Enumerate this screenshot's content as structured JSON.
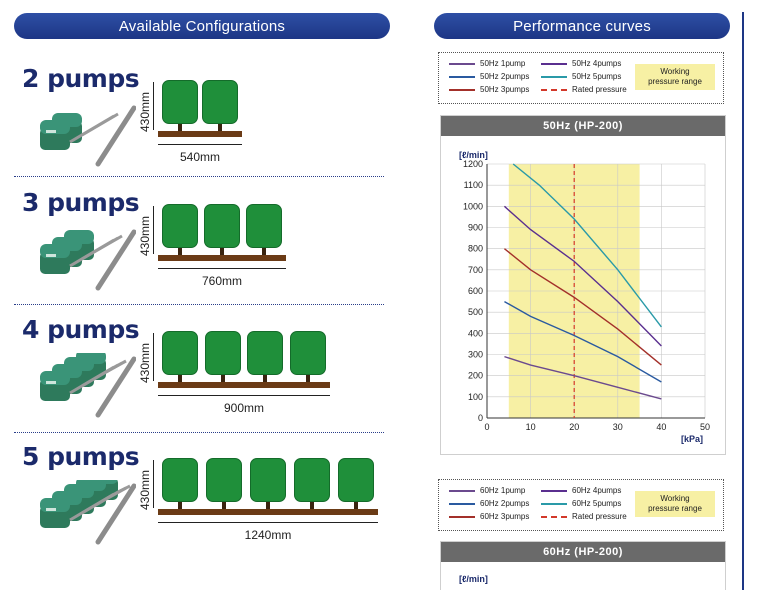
{
  "left_title": "Available Configurations",
  "right_title": "Performance curves",
  "configs": [
    {
      "count": "2 pumps",
      "height": "430mm",
      "width": "540mm",
      "trees": 2
    },
    {
      "count": "3 pumps",
      "height": "430mm",
      "width": "760mm",
      "trees": 3
    },
    {
      "count": "4 pumps",
      "height": "430mm",
      "width": "900mm",
      "trees": 4
    },
    {
      "count": "5 pumps",
      "height": "430mm",
      "width": "1240mm",
      "trees": 5
    }
  ],
  "legend50": {
    "items": [
      "50Hz 1pump",
      "50Hz 2pumps",
      "50Hz 3pumps",
      "50Hz 4pumps",
      "50Hz 5pumps",
      "Rated pressure"
    ],
    "working": "Working\npressure range"
  },
  "legend60": {
    "items": [
      "60Hz 1pump",
      "60Hz 2pumps",
      "60Hz 3pumps",
      "60Hz 4pumps",
      "60Hz 5pumps",
      "Rated pressure"
    ],
    "working": "Working\npressure range"
  },
  "colors": {
    "1pump": "#6b4a8e",
    "2pumps": "#2a5aa0",
    "3pumps": "#a3302a",
    "4pumps": "#5a2f8f",
    "5pumps": "#2a9aa8",
    "rated": "#d2382a",
    "working_band": "#f7f0a4"
  },
  "chart50_title": "50Hz (HP-200)",
  "chart60_title": "60Hz (HP-200)",
  "chart60_ylabel": "[ℓ/min]",
  "chart_data": {
    "type": "line",
    "title": "50Hz (HP-200)",
    "xlabel": "[kPa]",
    "ylabel": "[ℓ/min]",
    "xlim": [
      0,
      50
    ],
    "ylim": [
      0,
      1200
    ],
    "xticks": [
      0,
      10,
      20,
      30,
      40,
      50
    ],
    "yticks": [
      0,
      100,
      200,
      300,
      400,
      500,
      600,
      700,
      800,
      900,
      1000,
      1100,
      1200
    ],
    "grid": true,
    "working_range": [
      5,
      35
    ],
    "rated_pressure": 20,
    "series": [
      {
        "name": "50Hz 1pump",
        "x": [
          4,
          10,
          20,
          30,
          40
        ],
        "y": [
          290,
          250,
          200,
          145,
          90
        ]
      },
      {
        "name": "50Hz 2pumps",
        "x": [
          4,
          10,
          20,
          30,
          40
        ],
        "y": [
          550,
          480,
          390,
          290,
          170
        ]
      },
      {
        "name": "50Hz 3pumps",
        "x": [
          4,
          10,
          20,
          30,
          40
        ],
        "y": [
          800,
          700,
          570,
          420,
          250
        ]
      },
      {
        "name": "50Hz 4pumps",
        "x": [
          4,
          10,
          20,
          30,
          40
        ],
        "y": [
          1000,
          890,
          740,
          550,
          340
        ]
      },
      {
        "name": "50Hz 5pumps",
        "x": [
          6,
          12,
          20,
          30,
          40
        ],
        "y": [
          1200,
          1100,
          940,
          700,
          430
        ]
      }
    ]
  }
}
